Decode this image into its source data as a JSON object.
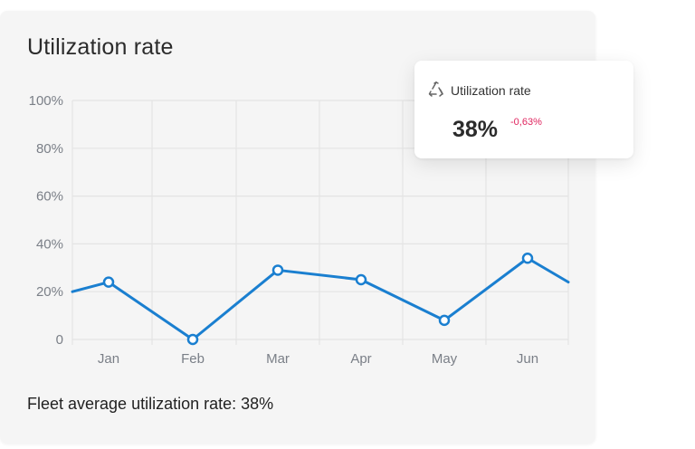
{
  "card": {
    "title": "Utilization rate",
    "footer": "Fleet average utilization rate: 38%"
  },
  "tooltip": {
    "icon": "recycle-icon",
    "label": "Utilization rate",
    "value": "38%",
    "delta": "-0,63%",
    "delta_color": "#e0245e"
  },
  "chart_data": {
    "type": "line",
    "categories": [
      "Jan",
      "Feb",
      "Mar",
      "Apr",
      "May",
      "Jun"
    ],
    "y_ticks": [
      "0",
      "20%",
      "40%",
      "60%",
      "80%",
      "100%"
    ],
    "ylim": [
      0,
      100
    ],
    "grid": true,
    "series": [
      {
        "color": "#1a7fd0",
        "points": [
          {
            "x": "Jan",
            "y": 24
          },
          {
            "x": "Feb",
            "y": 0
          },
          {
            "x": "Mar",
            "y": 29
          },
          {
            "x": "Apr",
            "y": 25
          },
          {
            "x": "May",
            "y": 8
          },
          {
            "x": "Jun",
            "y": 34
          }
        ],
        "left_edge_y": 20,
        "right_edge_y": 24
      }
    ]
  }
}
